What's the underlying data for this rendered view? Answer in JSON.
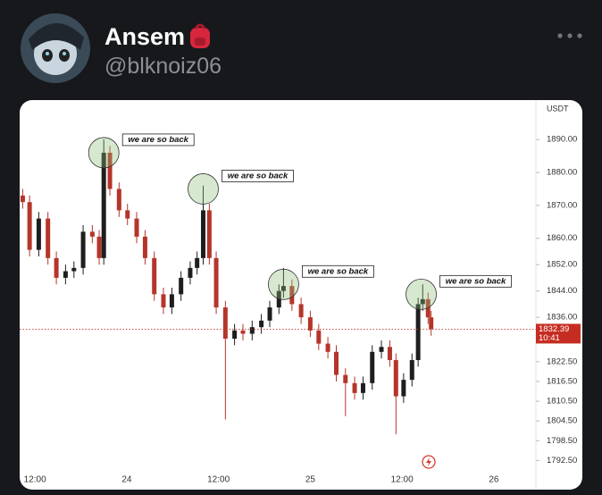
{
  "tweet": {
    "name": "Ansem",
    "handle": "@blknoiz06"
  },
  "chart_data": {
    "type": "candlestick",
    "y_unit": "USDT",
    "x": [
      -13.6,
      -12.7,
      -11.5,
      -10.3,
      -9.2,
      -8.0,
      -6.9,
      -5.7,
      -4.5,
      -3.6,
      -3.0,
      -2.2,
      -1.0,
      0.1,
      1.3,
      2.4,
      3.6,
      4.8,
      5.9,
      7.1,
      8.3,
      9.2,
      10.0,
      10.8,
      11.7,
      12.9,
      14.1,
      15.2,
      16.4,
      17.6,
      18.7,
      19.9,
      20.5,
      21.6,
      22.8,
      24.0,
      25.1,
      26.3,
      27.4,
      28.6,
      29.8,
      30.9,
      32.1,
      33.3,
      34.4,
      35.2,
      36.2,
      37.3,
      38.1,
      38.7,
      39.4,
      39.8
    ],
    "open": [
      1873,
      1871,
      1856.5,
      1866,
      1854,
      1848,
      1850,
      1851,
      1862,
      1860.5,
      1854,
      1886,
      1875,
      1868.5,
      1866,
      1860.5,
      1854,
      1843,
      1839,
      1843,
      1848,
      1851,
      1854,
      1868.5,
      1854,
      1839,
      1829.5,
      1832,
      1831,
      1833,
      1835,
      1839,
      1844,
      1845.5,
      1840,
      1836,
      1832,
      1828,
      1825.5,
      1818.5,
      1816,
      1813,
      1816,
      1825.5,
      1827,
      1823,
      1812,
      1817,
      1823,
      1840,
      1841.5,
      1836
    ],
    "high": [
      1875,
      1873,
      1868,
      1868,
      1856,
      1852,
      1853,
      1864,
      1864,
      1862.5,
      1890,
      1888,
      1877,
      1870.5,
      1868,
      1862.5,
      1856,
      1845,
      1845,
      1850,
      1853,
      1856,
      1876,
      1870.5,
      1856,
      1841,
      1834,
      1834,
      1835,
      1837,
      1841,
      1846,
      1851,
      1847.5,
      1842,
      1838,
      1834,
      1830,
      1827.5,
      1820.5,
      1818,
      1818,
      1827.5,
      1829,
      1829,
      1825,
      1819,
      1825,
      1842,
      1846,
      1843.5,
      1838
    ],
    "low": [
      1869,
      1854.5,
      1854.5,
      1852,
      1846,
      1846,
      1848,
      1849,
      1858.5,
      1852,
      1852,
      1873,
      1866.5,
      1864,
      1858.5,
      1852,
      1841,
      1837,
      1837,
      1841,
      1846,
      1849,
      1852,
      1852,
      1837,
      1805,
      1827.5,
      1829,
      1829,
      1831,
      1833,
      1837,
      1842,
      1838,
      1834,
      1830,
      1826,
      1823.5,
      1816.5,
      1806,
      1811,
      1811,
      1814,
      1823.5,
      1821,
      1800.5,
      1810,
      1815,
      1821,
      1838,
      1834,
      1830.39
    ],
    "close": [
      1871,
      1856.5,
      1866,
      1854,
      1848,
      1850,
      1851,
      1862,
      1860.5,
      1854,
      1886,
      1875,
      1868.5,
      1866,
      1860.5,
      1854,
      1843,
      1839,
      1843,
      1848,
      1851,
      1854,
      1868.5,
      1854,
      1839,
      1829.5,
      1832,
      1831,
      1833,
      1835,
      1839,
      1844,
      1845.5,
      1840,
      1836,
      1832,
      1828,
      1825.5,
      1818.5,
      1816,
      1813,
      1816,
      1825.5,
      1827,
      1823,
      1812,
      1817,
      1823,
      1840,
      1841.5,
      1836,
      1832.39
    ],
    "up_color": "#1e1e1e",
    "down_color": "#b5352a",
    "xlim": [
      -14,
      53.5
    ],
    "xticks": [
      {
        "value": -12,
        "label": "12:00"
      },
      {
        "value": 0,
        "label": "24"
      },
      {
        "value": 12,
        "label": "12:00"
      },
      {
        "value": 24,
        "label": "25"
      },
      {
        "value": 36,
        "label": "12:00"
      },
      {
        "value": 48,
        "label": "26"
      }
    ],
    "ylim": [
      1785,
      1902
    ],
    "yticks": [
      {
        "value": 1890,
        "label": "1890.00"
      },
      {
        "value": 1880,
        "label": "1880.00"
      },
      {
        "value": 1870,
        "label": "1870.00"
      },
      {
        "value": 1860,
        "label": "1860.00"
      },
      {
        "value": 1852,
        "label": "1852.00"
      },
      {
        "value": 1844,
        "label": "1844.00"
      },
      {
        "value": 1836,
        "label": "1836.00"
      },
      {
        "value": 1822.5,
        "label": "1822.50"
      },
      {
        "value": 1816.5,
        "label": "1816.50"
      },
      {
        "value": 1810.5,
        "label": "1810.50"
      },
      {
        "value": 1804.5,
        "label": "1804.50"
      },
      {
        "value": 1798.5,
        "label": "1798.50"
      },
      {
        "value": 1792.5,
        "label": "1792.50"
      }
    ],
    "last_price": 1832.39,
    "countdown": "10:41",
    "annotations": [
      {
        "text": "we are so back",
        "x": -3.0,
        "y": 1886
      },
      {
        "text": "we are so back",
        "x": 10.0,
        "y": 1875
      },
      {
        "text": "we are so back",
        "x": 20.5,
        "y": 1846
      },
      {
        "text": "we are so back",
        "x": 38.5,
        "y": 1843
      }
    ]
  }
}
